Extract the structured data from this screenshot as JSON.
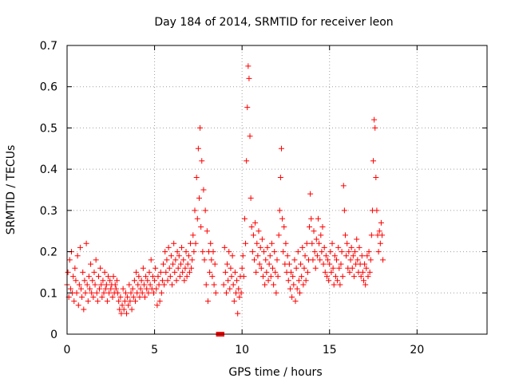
{
  "chart_data": {
    "type": "scatter",
    "title": "Day 184 of 2014, SRMTID for receiver leon",
    "xlabel": "GPS time / hours",
    "ylabel": "SRMTID / TECUs",
    "xlim": [
      0,
      24
    ],
    "ylim": [
      0,
      0.7
    ],
    "x_ticks": [
      0,
      5,
      10,
      15,
      20
    ],
    "x_tick_labels": [
      "0",
      "5",
      "10",
      "15",
      "20"
    ],
    "y_ticks": [
      0,
      0.1,
      0.2,
      0.3,
      0.4,
      0.5,
      0.6,
      0.7
    ],
    "y_tick_labels": [
      "0",
      "0.1",
      "0.2",
      "0.3",
      "0.4",
      "0.5",
      "0.6",
      "0.7"
    ],
    "grid": true,
    "marker": "plus",
    "series_color": "#ff0000",
    "series": [
      {
        "name": "SRMTID",
        "x_start": 0.0,
        "x_step": 0.05,
        "y": [
          0.12,
          0.15,
          0.09,
          0.18,
          0.11,
          0.2,
          0.1,
          0.14,
          0.08,
          0.16,
          0.13,
          0.1,
          0.19,
          0.07,
          0.12,
          0.21,
          0.11,
          0.09,
          0.15,
          0.06,
          0.13,
          0.1,
          0.22,
          0.12,
          0.08,
          0.14,
          0.11,
          0.17,
          0.1,
          0.13,
          0.09,
          0.15,
          0.12,
          0.18,
          0.1,
          0.08,
          0.14,
          0.11,
          0.16,
          0.12,
          0.09,
          0.13,
          0.1,
          0.15,
          0.11,
          0.12,
          0.08,
          0.14,
          0.1,
          0.13,
          0.11,
          0.12,
          0.09,
          0.14,
          0.1,
          0.12,
          0.11,
          0.13,
          0.1,
          0.08,
          0.06,
          0.09,
          0.05,
          0.07,
          0.11,
          0.06,
          0.08,
          0.1,
          0.05,
          0.09,
          0.07,
          0.12,
          0.08,
          0.1,
          0.06,
          0.11,
          0.09,
          0.13,
          0.08,
          0.15,
          0.1,
          0.12,
          0.14,
          0.09,
          0.11,
          0.13,
          0.1,
          0.16,
          0.12,
          0.09,
          0.14,
          0.11,
          0.13,
          0.1,
          0.15,
          0.12,
          0.18,
          0.11,
          0.14,
          0.1,
          0.13,
          0.16,
          0.11,
          0.07,
          0.14,
          0.12,
          0.08,
          0.15,
          0.1,
          0.13,
          0.17,
          0.12,
          0.2,
          0.15,
          0.18,
          0.13,
          0.21,
          0.16,
          0.14,
          0.19,
          0.12,
          0.17,
          0.22,
          0.15,
          0.18,
          0.13,
          0.2,
          0.16,
          0.19,
          0.14,
          0.17,
          0.21,
          0.15,
          0.18,
          0.13,
          0.16,
          0.2,
          0.14,
          0.17,
          0.19,
          0.15,
          0.22,
          0.16,
          0.18,
          0.24,
          0.2,
          0.3,
          0.22,
          0.38,
          0.28,
          0.45,
          0.33,
          0.5,
          0.26,
          0.42,
          0.2,
          0.35,
          0.18,
          0.3,
          0.12,
          0.25,
          0.08,
          0.2,
          0.15,
          0.22,
          0.18,
          0.14,
          0.2,
          0.12,
          0.17,
          0.1,
          0.15,
          0.13,
          0.19,
          0.11,
          0.16,
          0.09,
          0.14,
          0.18,
          0.12,
          0.21,
          0.15,
          0.1,
          0.17,
          0.13,
          0.2,
          0.11,
          0.16,
          0.14,
          0.19,
          0.12,
          0.08,
          0.15,
          0.1,
          0.13,
          0.05,
          0.11,
          0.09,
          0.14,
          0.1,
          0.16,
          0.19,
          0.14,
          0.28,
          0.22,
          0.42,
          0.55,
          0.65,
          0.62,
          0.48,
          0.33,
          0.26,
          0.2,
          0.24,
          0.18,
          0.27,
          0.15,
          0.22,
          0.19,
          0.25,
          0.17,
          0.21,
          0.16,
          0.23,
          0.14,
          0.2,
          0.12,
          0.18,
          0.15,
          0.21,
          0.13,
          0.17,
          0.19,
          0.14,
          0.22,
          0.16,
          0.12,
          0.2,
          0.15,
          0.1,
          0.18,
          0.14,
          0.24,
          0.3,
          0.38,
          0.45,
          0.28,
          0.2,
          0.26,
          0.17,
          0.22,
          0.15,
          0.19,
          0.13,
          0.17,
          0.11,
          0.15,
          0.09,
          0.14,
          0.12,
          0.18,
          0.08,
          0.16,
          0.11,
          0.2,
          0.13,
          0.1,
          0.17,
          0.14,
          0.21,
          0.12,
          0.16,
          0.19,
          0.13,
          0.22,
          0.15,
          0.18,
          0.26,
          0.34,
          0.28,
          0.22,
          0.18,
          0.25,
          0.2,
          0.16,
          0.23,
          0.19,
          0.28,
          0.22,
          0.18,
          0.24,
          0.2,
          0.26,
          0.17,
          0.21,
          0.15,
          0.19,
          0.14,
          0.18,
          0.13,
          0.17,
          0.2,
          0.15,
          0.22,
          0.16,
          0.12,
          0.19,
          0.14,
          0.18,
          0.13,
          0.21,
          0.16,
          0.12,
          0.17,
          0.2,
          0.14,
          0.36,
          0.3,
          0.24,
          0.19,
          0.22,
          0.16,
          0.2,
          0.15,
          0.18,
          0.21,
          0.16,
          0.19,
          0.14,
          0.2,
          0.17,
          0.23,
          0.18,
          0.15,
          0.21,
          0.17,
          0.14,
          0.19,
          0.15,
          0.13,
          0.17,
          0.12,
          0.16,
          0.19,
          0.14,
          0.2,
          0.15,
          0.18,
          0.24,
          0.3,
          0.42,
          0.52,
          0.5,
          0.38,
          0.3,
          0.24,
          0.2,
          0.25,
          0.22,
          0.27,
          0.24,
          0.18
        ],
        "gaps": [
          [
            8.55,
            8.95
          ]
        ]
      }
    ],
    "zero_markers_x": [
      8.65,
      8.85
    ]
  }
}
